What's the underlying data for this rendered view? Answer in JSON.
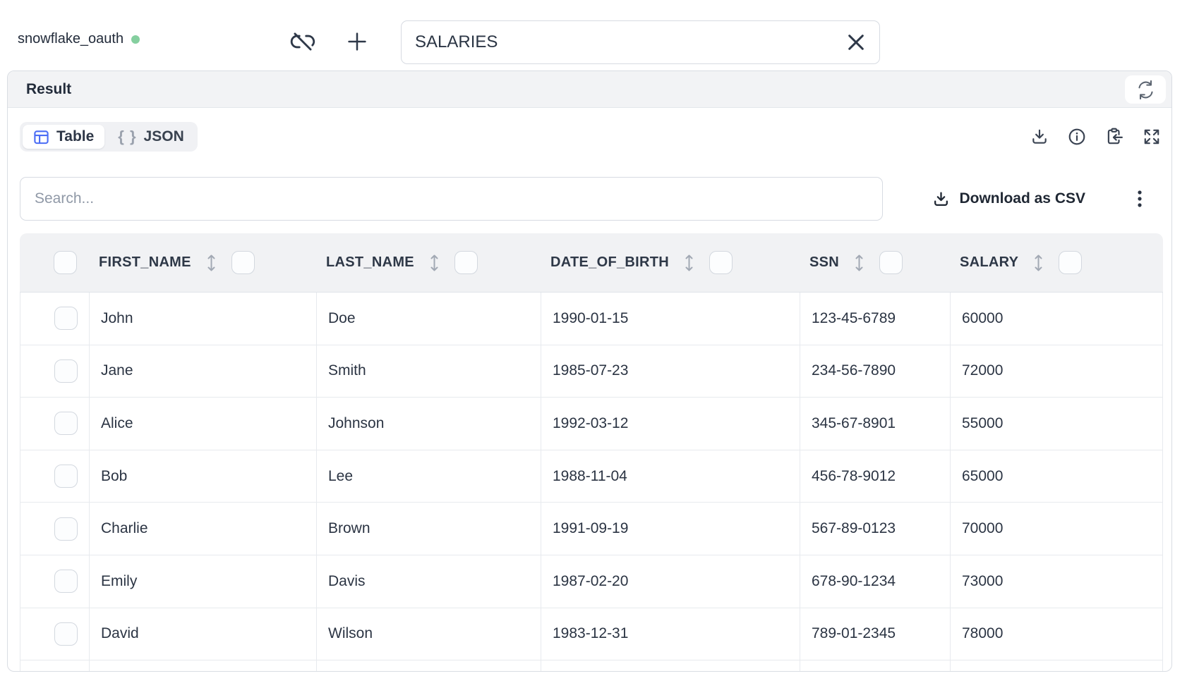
{
  "topbar": {
    "connection_name": "snowflake_oauth",
    "table_input_value": "SALARIES"
  },
  "result_panel": {
    "title": "Result"
  },
  "view_tabs": {
    "table_label": "Table",
    "json_label": "JSON",
    "json_icon_glyph": "{ }"
  },
  "search": {
    "placeholder": "Search..."
  },
  "toolbar": {
    "download_csv_label": "Download as CSV"
  },
  "data_table": {
    "columns": [
      "FIRST_NAME",
      "LAST_NAME",
      "DATE_OF_BIRTH",
      "SSN",
      "SALARY"
    ],
    "rows": [
      [
        "John",
        "Doe",
        "1990-01-15",
        "123-45-6789",
        "60000"
      ],
      [
        "Jane",
        "Smith",
        "1985-07-23",
        "234-56-7890",
        "72000"
      ],
      [
        "Alice",
        "Johnson",
        "1992-03-12",
        "345-67-8901",
        "55000"
      ],
      [
        "Bob",
        "Lee",
        "1988-11-04",
        "456-78-9012",
        "65000"
      ],
      [
        "Charlie",
        "Brown",
        "1991-09-19",
        "567-89-0123",
        "70000"
      ],
      [
        "Emily",
        "Davis",
        "1987-02-20",
        "678-90-1234",
        "73000"
      ],
      [
        "David",
        "Wilson",
        "1983-12-31",
        "789-01-2345",
        "78000"
      ]
    ]
  },
  "icons": {
    "connection_status": "green-status-dot",
    "disconnect": "link-off-icon",
    "add_tab": "plus-icon",
    "clear_input": "x-icon",
    "refresh": "refresh-icon",
    "table_view": "table-grid-icon",
    "json_view": "curly-braces-icon",
    "download": "download-icon",
    "info": "info-circle-icon",
    "copy_results": "clipboard-import-icon",
    "fullscreen": "expand-arrows-icon",
    "more_menu": "vertical-dots-icon",
    "column_sort": "up-down-arrows-icon"
  },
  "colors": {
    "accent_blue": "#4a6cf5",
    "status_green": "#85cf9f",
    "header_bg": "#f1f2f4",
    "panel_border": "#d9dde3",
    "row_border": "#e7eaee",
    "text_dark": "#2b3443",
    "text_gray": "#9aa1ad"
  }
}
